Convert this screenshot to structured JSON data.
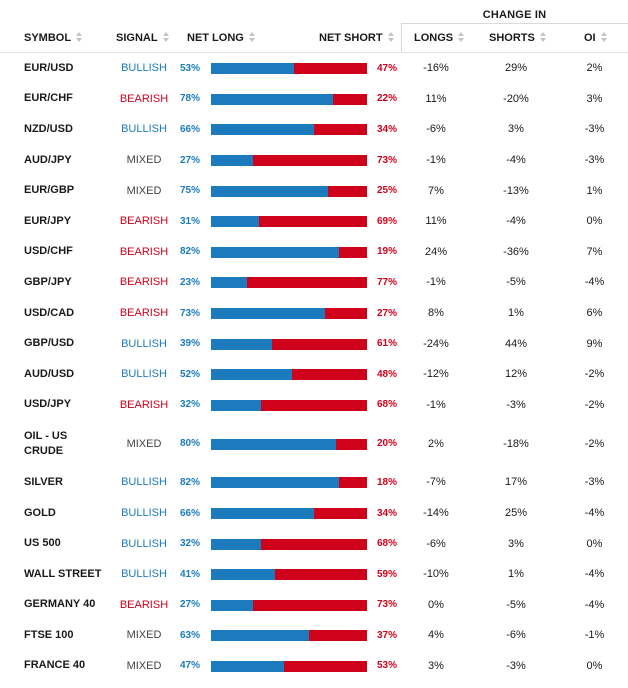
{
  "header": {
    "change_in": "CHANGE IN",
    "symbol": "SYMBOL",
    "signal": "SIGNAL",
    "net_long": "NET LONG",
    "net_short": "NET SHORT",
    "longs": "LONGS",
    "shorts": "SHORTS",
    "oi": "OI"
  },
  "colors": {
    "long": "#1b7bbd",
    "short": "#d0021b",
    "mixed": "#444444"
  },
  "rows": [
    {
      "symbol": "EUR/USD",
      "signal": "BULLISH",
      "long": "53%",
      "short": "47%",
      "long_value": 53,
      "longs": "-16%",
      "shorts": "29%",
      "oi": "2%"
    },
    {
      "symbol": "EUR/CHF",
      "signal": "BEARISH",
      "long": "78%",
      "short": "22%",
      "long_value": 78,
      "longs": "11%",
      "shorts": "-20%",
      "oi": "3%"
    },
    {
      "symbol": "NZD/USD",
      "signal": "BULLISH",
      "long": "66%",
      "short": "34%",
      "long_value": 66,
      "longs": "-6%",
      "shorts": "3%",
      "oi": "-3%"
    },
    {
      "symbol": "AUD/JPY",
      "signal": "MIXED",
      "long": "27%",
      "short": "73%",
      "long_value": 27,
      "longs": "-1%",
      "shorts": "-4%",
      "oi": "-3%"
    },
    {
      "symbol": "EUR/GBP",
      "signal": "MIXED",
      "long": "75%",
      "short": "25%",
      "long_value": 75,
      "longs": "7%",
      "shorts": "-13%",
      "oi": "1%"
    },
    {
      "symbol": "EUR/JPY",
      "signal": "BEARISH",
      "long": "31%",
      "short": "69%",
      "long_value": 31,
      "longs": "11%",
      "shorts": "-4%",
      "oi": "0%"
    },
    {
      "symbol": "USD/CHF",
      "signal": "BEARISH",
      "long": "82%",
      "short": "19%",
      "long_value": 82,
      "longs": "24%",
      "shorts": "-36%",
      "oi": "7%"
    },
    {
      "symbol": "GBP/JPY",
      "signal": "BEARISH",
      "long": "23%",
      "short": "77%",
      "long_value": 23,
      "longs": "-1%",
      "shorts": "-5%",
      "oi": "-4%"
    },
    {
      "symbol": "USD/CAD",
      "signal": "BEARISH",
      "long": "73%",
      "short": "27%",
      "long_value": 73,
      "longs": "8%",
      "shorts": "1%",
      "oi": "6%"
    },
    {
      "symbol": "GBP/USD",
      "signal": "BULLISH",
      "long": "39%",
      "short": "61%",
      "long_value": 39,
      "longs": "-24%",
      "shorts": "44%",
      "oi": "9%"
    },
    {
      "symbol": "AUD/USD",
      "signal": "BULLISH",
      "long": "52%",
      "short": "48%",
      "long_value": 52,
      "longs": "-12%",
      "shorts": "12%",
      "oi": "-2%"
    },
    {
      "symbol": "USD/JPY",
      "signal": "BEARISH",
      "long": "32%",
      "short": "68%",
      "long_value": 32,
      "longs": "-1%",
      "shorts": "-3%",
      "oi": "-2%"
    },
    {
      "symbol": "OIL - US CRUDE",
      "signal": "MIXED",
      "long": "80%",
      "short": "20%",
      "long_value": 80,
      "longs": "2%",
      "shorts": "-18%",
      "oi": "-2%",
      "tall": true
    },
    {
      "symbol": "SILVER",
      "signal": "BULLISH",
      "long": "82%",
      "short": "18%",
      "long_value": 82,
      "longs": "-7%",
      "shorts": "17%",
      "oi": "-3%"
    },
    {
      "symbol": "GOLD",
      "signal": "BULLISH",
      "long": "66%",
      "short": "34%",
      "long_value": 66,
      "longs": "-14%",
      "shorts": "25%",
      "oi": "-4%"
    },
    {
      "symbol": "US 500",
      "signal": "BULLISH",
      "long": "32%",
      "short": "68%",
      "long_value": 32,
      "longs": "-6%",
      "shorts": "3%",
      "oi": "0%"
    },
    {
      "symbol": "WALL STREET",
      "signal": "BULLISH",
      "long": "41%",
      "short": "59%",
      "long_value": 41,
      "longs": "-10%",
      "shorts": "1%",
      "oi": "-4%"
    },
    {
      "symbol": "GERMANY 40",
      "signal": "BEARISH",
      "long": "27%",
      "short": "73%",
      "long_value": 27,
      "longs": "0%",
      "shorts": "-5%",
      "oi": "-4%"
    },
    {
      "symbol": "FTSE 100",
      "signal": "MIXED",
      "long": "63%",
      "short": "37%",
      "long_value": 63,
      "longs": "4%",
      "shorts": "-6%",
      "oi": "-1%"
    },
    {
      "symbol": "FRANCE 40",
      "signal": "MIXED",
      "long": "47%",
      "short": "53%",
      "long_value": 47,
      "longs": "3%",
      "shorts": "-3%",
      "oi": "0%"
    }
  ]
}
